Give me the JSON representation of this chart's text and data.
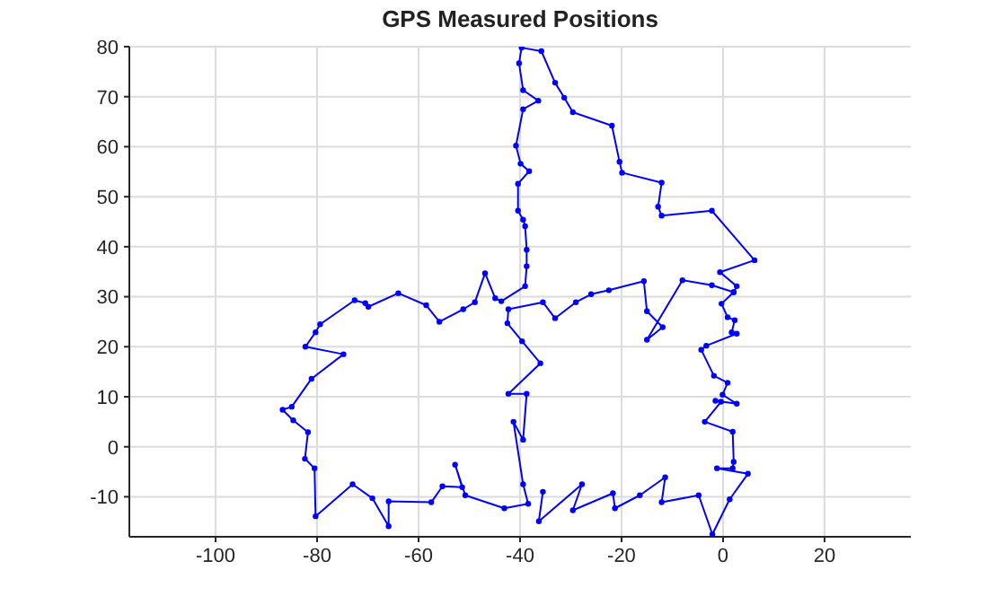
{
  "chart_data": {
    "type": "line",
    "title": "GPS Measured Positions",
    "series": [
      {
        "color": "#0000ff",
        "x": [
          -35.5,
          -36.3,
          -27.8,
          -29.6,
          -21.7,
          -21.3,
          -16.4,
          -11.4,
          -12.1,
          -4.8,
          -2.1,
          1.3,
          4.9,
          -1.2,
          1.9,
          2.1,
          1.9,
          -3.6,
          -0.4,
          -1.5,
          2.7,
          -0.1,
          0.9,
          -1.8,
          -4.3,
          -3.3,
          2.7,
          1.7,
          2.3,
          0.9,
          -0.3,
          2.1,
          2.7,
          -0.6,
          6.2,
          -2.2,
          -12.1,
          -12.8,
          -12.1,
          -19.9,
          -20.4,
          -21.9,
          -29.6,
          -31.3,
          -33.1,
          -35.8,
          -39.7,
          -40.2,
          -39.4,
          -36.4,
          -39.4,
          -40.8,
          -39.9,
          -38.2,
          -40.4,
          -40.4,
          -39.4,
          -39,
          -38.7,
          -38.7,
          -39,
          -43.7,
          -44.9,
          -46.9,
          -48.9,
          -51.2,
          -55.9,
          -58.5,
          -64,
          -69.9,
          -70.5,
          -72.6,
          -79.4,
          -80.3,
          -82.3,
          -74.8,
          -81.1,
          -85,
          -86.8,
          -84.7,
          -81.8,
          -82.4,
          -80.5,
          -80.3,
          -73,
          -69.1,
          -65.9,
          -65.9,
          -57.5,
          -55.3,
          -51.4,
          -52.8,
          -50.8,
          -43.1,
          -38.4,
          -39.4,
          -41.3,
          -39.4,
          -38.7,
          -42.3,
          -36,
          -39.6,
          -42.5,
          -42.3,
          -35.5,
          -33.1,
          -29,
          -26,
          -22.5,
          -15.6,
          -15,
          -11.9,
          -15,
          -8,
          -2.2,
          2.1
        ],
        "values": [
          -9,
          -14.9,
          -7.5,
          -12.7,
          -9.3,
          -12.3,
          -9.7,
          -6.1,
          -11.1,
          -9.7,
          -17.5,
          -10.5,
          -5.4,
          -4.3,
          -4.3,
          -3,
          3,
          5,
          9,
          9.2,
          8.6,
          10.4,
          12.8,
          14.2,
          19.4,
          20.2,
          22.6,
          22.9,
          25.3,
          25.9,
          28.6,
          30.9,
          32.1,
          34.9,
          37.3,
          47.2,
          46.2,
          48,
          52.8,
          54.8,
          57,
          64.2,
          66.9,
          69.8,
          72.8,
          79.1,
          79.8,
          76.7,
          71.3,
          69.2,
          67.5,
          60.2,
          56.6,
          55.1,
          52.6,
          47.2,
          45.4,
          44.1,
          39.4,
          36.1,
          32.1,
          29.1,
          29.7,
          34.7,
          28.9,
          27.5,
          25,
          28.3,
          30.7,
          28,
          28.7,
          29.3,
          24.5,
          22.9,
          20,
          18.5,
          13.6,
          8,
          7.4,
          5.3,
          2.9,
          -2.4,
          -4.3,
          -13.9,
          -7.5,
          -10.3,
          -15.9,
          -10.9,
          -11.1,
          -7.9,
          -8.1,
          -3.6,
          -9.7,
          -12.3,
          -11.4,
          -7.5,
          5,
          1.4,
          10.6,
          10.6,
          16.7,
          21.1,
          24.7,
          27.5,
          28.9,
          25.7,
          28.9,
          30.5,
          31.3,
          33.1,
          27.1,
          23.9,
          21.4,
          33.3,
          32.3,
          30.9
        ]
      }
    ],
    "xlim": [
      -117,
      37
    ],
    "xticks": [
      -100,
      -80,
      -60,
      -40,
      -20,
      0,
      20
    ],
    "ylim": [
      -18,
      80
    ],
    "yticks": [
      -10,
      0,
      10,
      20,
      30,
      40,
      50,
      60,
      70,
      80
    ],
    "grid": true,
    "marker": "circle",
    "line_style": "solid"
  }
}
